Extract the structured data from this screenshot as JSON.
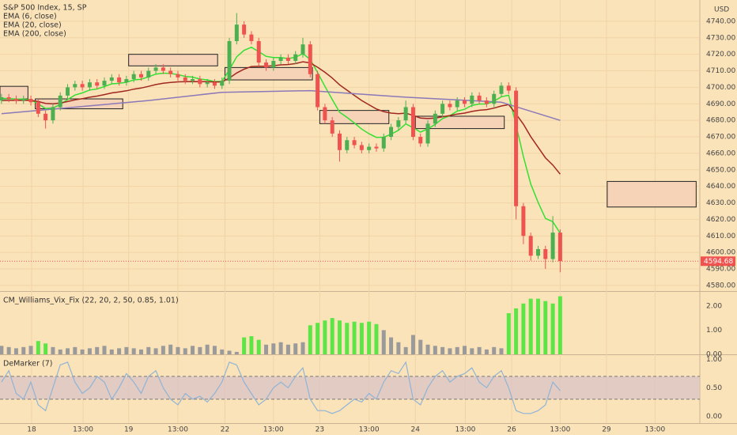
{
  "chart_data": [
    {
      "type": "candlestick",
      "title": "S&P 500 Index, 15, SP",
      "currency": "USD",
      "xlim": [
        -0.2,
        95
      ],
      "ylim": [
        4576.6,
        4752.9
      ],
      "grid": true,
      "yticks": [
        {
          "value": 4580,
          "label": "4580.00"
        },
        {
          "value": 4590,
          "label": "4590.00"
        },
        {
          "value": 4600,
          "label": "4600.00"
        },
        {
          "value": 4610,
          "label": "4610.00"
        },
        {
          "value": 4620,
          "label": "4620.00"
        },
        {
          "value": 4630,
          "label": "4630.00"
        },
        {
          "value": 4640,
          "label": "4640.00"
        },
        {
          "value": 4650,
          "label": "4650.00"
        },
        {
          "value": 4660,
          "label": "4660.00"
        },
        {
          "value": 4670,
          "label": "4670.00"
        },
        {
          "value": 4680,
          "label": "4680.00"
        },
        {
          "value": 4690,
          "label": "4690.00"
        },
        {
          "value": 4700,
          "label": "4700.00"
        },
        {
          "value": 4710,
          "label": "4710.00"
        },
        {
          "value": 4720,
          "label": "4720.00"
        },
        {
          "value": 4730,
          "label": "4730.00"
        },
        {
          "value": 4740,
          "label": "4740.00"
        }
      ],
      "up_color": "#4caf50",
      "down_color": "#ef5350",
      "open": [
        4692,
        4694,
        4693,
        4692,
        4693,
        4691,
        4684,
        4680,
        4688,
        4695,
        4700,
        4702,
        4700,
        4703,
        4701,
        4704,
        4706,
        4703,
        4705,
        4708,
        4706,
        4710,
        4712,
        4710,
        4708,
        4706,
        4704,
        4705,
        4702,
        4703,
        4701,
        4704,
        4728,
        4738,
        4732,
        4728,
        4715,
        4712,
        4716,
        4718,
        4716,
        4720,
        4726,
        4708,
        4688,
        4680,
        4672,
        4662,
        4668,
        4665,
        4662,
        4664,
        4663,
        4670,
        4676,
        4680,
        4688,
        4670,
        4666,
        4678,
        4684,
        4690,
        4688,
        4692,
        4690,
        4695,
        4692,
        4690,
        4696,
        4701,
        4698,
        4628,
        4610,
        4598,
        4602,
        4596,
        4612
      ],
      "high": [
        4696,
        4696,
        4695,
        4695,
        4695,
        4693,
        4686,
        4690,
        4697,
        4702,
        4704,
        4704,
        4705,
        4705,
        4706,
        4708,
        4708,
        4707,
        4710,
        4710,
        4712,
        4714,
        4714,
        4712,
        4710,
        4708,
        4707,
        4707,
        4705,
        4705,
        4706,
        4730,
        4745,
        4740,
        4734,
        4730,
        4717,
        4718,
        4720,
        4720,
        4722,
        4730,
        4728,
        4710,
        4690,
        4682,
        4674,
        4670,
        4670,
        4667,
        4666,
        4666,
        4672,
        4678,
        4682,
        4692,
        4690,
        4672,
        4680,
        4686,
        4692,
        4692,
        4694,
        4694,
        4697,
        4697,
        4694,
        4698,
        4703,
        4703,
        4700,
        4630,
        4612,
        4604,
        4604,
        4622,
        4614
      ],
      "low": [
        4690,
        4691,
        4690,
        4690,
        4689,
        4682,
        4675,
        4678,
        4686,
        4693,
        4698,
        4698,
        4698,
        4699,
        4699,
        4702,
        4701,
        4701,
        4703,
        4704,
        4704,
        4708,
        4708,
        4706,
        4704,
        4702,
        4702,
        4700,
        4700,
        4699,
        4699,
        4702,
        4726,
        4730,
        4726,
        4713,
        4710,
        4710,
        4714,
        4714,
        4714,
        4718,
        4706,
        4686,
        4678,
        4670,
        4655,
        4660,
        4663,
        4660,
        4660,
        4661,
        4661,
        4668,
        4674,
        4678,
        4668,
        4664,
        4664,
        4676,
        4682,
        4686,
        4686,
        4688,
        4688,
        4690,
        4688,
        4688,
        4694,
        4696,
        4620,
        4605,
        4595,
        4596,
        4590,
        4594,
        4588
      ],
      "close": [
        4694,
        4693,
        4692,
        4693,
        4691,
        4684,
        4680,
        4688,
        4695,
        4700,
        4702,
        4700,
        4703,
        4701,
        4704,
        4706,
        4703,
        4705,
        4708,
        4706,
        4710,
        4712,
        4710,
        4708,
        4706,
        4704,
        4705,
        4702,
        4703,
        4701,
        4704,
        4728,
        4738,
        4732,
        4728,
        4715,
        4712,
        4716,
        4718,
        4716,
        4720,
        4726,
        4708,
        4688,
        4680,
        4672,
        4662,
        4668,
        4665,
        4662,
        4664,
        4663,
        4670,
        4676,
        4680,
        4688,
        4670,
        4666,
        4678,
        4684,
        4690,
        4688,
        4692,
        4690,
        4695,
        4692,
        4690,
        4696,
        4701,
        4698,
        4628,
        4610,
        4598,
        4602,
        4596,
        4612,
        4594.68
      ],
      "last_price": 4594.68,
      "series": [
        {
          "name": "EMA (6, close)",
          "color": "#33e033",
          "values": [
            4693.3,
            4693.2,
            4692.9,
            4692.9,
            4692.4,
            4690.0,
            4687.1,
            4687.5,
            4689.6,
            4692.6,
            4695.3,
            4696.6,
            4698.4,
            4699.0,
            4700.5,
            4702.1,
            4702.4,
            4703.1,
            4704.5,
            4704.9,
            4706.4,
            4708.0,
            4708.6,
            4708.4,
            4707.7,
            4706.6,
            4706.2,
            4705.0,
            4704.5,
            4703.5,
            4703.6,
            4710.6,
            4718.5,
            4722.4,
            4724.3,
            4721.6,
            4718.8,
            4718.0,
            4718.0,
            4717.4,
            4718.2,
            4720.4,
            4716.9,
            4708.9,
            4700.6,
            4692.6,
            4684.9,
            4681.8,
            4678.4,
            4674.7,
            4671.9,
            4669.7,
            4669.8,
            4671.6,
            4674.0,
            4677.9,
            4675.6,
            4672.9,
            4674.8,
            4677.6,
            4681.1,
            4682.8,
            4685.6,
            4686.7,
            4689.1,
            4689.9,
            4689.9,
            4691.6,
            4694.3,
            4695.2,
            4677.2,
            4658.0,
            4641.4,
            4630.3,
            4620.6,
            4618.6,
            4611.6
          ]
        },
        {
          "name": "EMA (20, close)",
          "color": "#a0281e",
          "values": [
            4692.0,
            4692.1,
            4692.1,
            4692.2,
            4692.1,
            4691.4,
            4690.3,
            4690.0,
            4690.5,
            4691.4,
            4692.4,
            4693.1,
            4694.0,
            4694.7,
            4695.6,
            4696.6,
            4697.2,
            4697.9,
            4698.9,
            4699.6,
            4700.6,
            4701.7,
            4702.5,
            4703.0,
            4703.3,
            4703.4,
            4703.5,
            4703.4,
            4703.4,
            4703.2,
            4703.3,
            4705.6,
            4708.7,
            4711.0,
            4712.6,
            4712.8,
            4712.8,
            4713.1,
            4713.6,
            4713.8,
            4714.4,
            4715.5,
            4714.8,
            4712.2,
            4709.1,
            4705.6,
            4701.5,
            4698.3,
            4695.1,
            4692.0,
            4689.4,
            4686.9,
            4685.3,
            4684.4,
            4684.0,
            4684.4,
            4683.0,
            4681.4,
            4681.1,
            4681.4,
            4682.2,
            4682.9,
            4683.8,
            4684.4,
            4685.4,
            4686.1,
            4686.5,
            4687.4,
            4688.7,
            4689.5,
            4683.8,
            4677.7,
            4670.1,
            4663.7,
            4657.3,
            4652.9,
            4647.4
          ]
        },
        {
          "name": "EMA (200, close)",
          "color": "#8a78b8",
          "x": [
            0,
            10,
            20,
            30,
            42,
            55,
            68,
            76
          ],
          "values": [
            4684,
            4688,
            4692,
            4697,
            4698,
            4694,
            4691,
            4680
          ]
        }
      ],
      "zone_color": "#f6d2b6",
      "zones": [
        {
          "x": [
            -0.2,
            3.6
          ],
          "y": [
            4693,
            4700.6
          ]
        },
        {
          "x": [
            4.6,
            16.5
          ],
          "y": [
            4687,
            4693
          ]
        },
        {
          "x": [
            17.3,
            29.4
          ],
          "y": [
            4713,
            4720
          ]
        },
        {
          "x": [
            30.4,
            42.3
          ],
          "y": [
            4704.5,
            4712
          ]
        },
        {
          "x": [
            43.3,
            52.7
          ],
          "y": [
            4678,
            4686
          ]
        },
        {
          "x": [
            56.3,
            68.4
          ],
          "y": [
            4675,
            4682.5
          ]
        },
        {
          "x": [
            82.4,
            94.5
          ],
          "y": [
            4627.5,
            4643
          ]
        }
      ]
    },
    {
      "type": "bar",
      "title": "CM_Williams_Vix_Fix (22, 20, 2, 50, 0.85, 1.01)",
      "xlim": [
        -0.2,
        95
      ],
      "ylim": [
        0,
        2.55
      ],
      "yticks": [
        {
          "value": 0,
          "label": "0.00"
        },
        {
          "value": 1,
          "label": "1.00"
        },
        {
          "value": 2,
          "label": "2.00"
        }
      ],
      "values": [
        0.35,
        0.3,
        0.25,
        0.3,
        0.35,
        0.55,
        0.45,
        0.3,
        0.2,
        0.25,
        0.3,
        0.2,
        0.25,
        0.3,
        0.35,
        0.2,
        0.25,
        0.3,
        0.25,
        0.2,
        0.3,
        0.25,
        0.35,
        0.4,
        0.3,
        0.25,
        0.35,
        0.3,
        0.4,
        0.35,
        0.2,
        0.15,
        0.1,
        0.7,
        0.75,
        0.6,
        0.4,
        0.45,
        0.5,
        0.4,
        0.45,
        0.5,
        1.2,
        1.3,
        1.4,
        1.5,
        1.4,
        1.3,
        1.35,
        1.3,
        1.35,
        1.25,
        1.0,
        0.7,
        0.5,
        0.3,
        0.8,
        0.6,
        0.4,
        0.35,
        0.3,
        0.25,
        0.3,
        0.35,
        0.25,
        0.3,
        0.2,
        0.3,
        0.25,
        1.7,
        1.9,
        2.1,
        2.3,
        2.3,
        2.2,
        2.1,
        2.4
      ],
      "colors": [
        "#9a9a9a",
        "#9a9a9a",
        "#9a9a9a",
        "#9a9a9a",
        "#9a9a9a",
        "#5be646",
        "#5be646",
        "#9a9a9a",
        "#9a9a9a",
        "#9a9a9a",
        "#9a9a9a",
        "#9a9a9a",
        "#9a9a9a",
        "#9a9a9a",
        "#9a9a9a",
        "#9a9a9a",
        "#9a9a9a",
        "#9a9a9a",
        "#9a9a9a",
        "#9a9a9a",
        "#9a9a9a",
        "#9a9a9a",
        "#9a9a9a",
        "#9a9a9a",
        "#9a9a9a",
        "#9a9a9a",
        "#9a9a9a",
        "#9a9a9a",
        "#9a9a9a",
        "#9a9a9a",
        "#9a9a9a",
        "#9a9a9a",
        "#9a9a9a",
        "#5be646",
        "#5be646",
        "#5be646",
        "#9a9a9a",
        "#9a9a9a",
        "#9a9a9a",
        "#9a9a9a",
        "#9a9a9a",
        "#9a9a9a",
        "#5be646",
        "#5be646",
        "#5be646",
        "#5be646",
        "#5be646",
        "#5be646",
        "#5be646",
        "#5be646",
        "#5be646",
        "#5be646",
        "#9a9a9a",
        "#9a9a9a",
        "#9a9a9a",
        "#9a9a9a",
        "#9a9a9a",
        "#9a9a9a",
        "#9a9a9a",
        "#9a9a9a",
        "#9a9a9a",
        "#9a9a9a",
        "#9a9a9a",
        "#9a9a9a",
        "#9a9a9a",
        "#9a9a9a",
        "#9a9a9a",
        "#9a9a9a",
        "#9a9a9a",
        "#5be646",
        "#5be646",
        "#5be646",
        "#5be646",
        "#5be646",
        "#5be646",
        "#5be646",
        "#5be646"
      ]
    },
    {
      "type": "line",
      "title": "DeMarker (7)",
      "color": "#8fb4d6",
      "xlim": [
        -0.2,
        95
      ],
      "ylim": [
        -0.12,
        1.06
      ],
      "yticks": [
        {
          "value": 0,
          "label": "0.00"
        },
        {
          "value": 0.5,
          "label": "0.50"
        },
        {
          "value": 1,
          "label": "1.00"
        }
      ],
      "band": [
        0.3,
        0.7
      ],
      "band_color": "#dcc4c4",
      "values": [
        0.6,
        0.8,
        0.4,
        0.3,
        0.6,
        0.2,
        0.1,
        0.5,
        0.9,
        0.95,
        0.6,
        0.4,
        0.5,
        0.7,
        0.6,
        0.3,
        0.5,
        0.75,
        0.6,
        0.4,
        0.7,
        0.8,
        0.5,
        0.3,
        0.2,
        0.4,
        0.3,
        0.35,
        0.25,
        0.4,
        0.6,
        0.95,
        0.9,
        0.6,
        0.4,
        0.2,
        0.3,
        0.5,
        0.6,
        0.5,
        0.7,
        0.85,
        0.3,
        0.1,
        0.1,
        0.05,
        0.1,
        0.2,
        0.3,
        0.25,
        0.4,
        0.3,
        0.6,
        0.8,
        0.75,
        0.95,
        0.3,
        0.2,
        0.5,
        0.7,
        0.8,
        0.6,
        0.7,
        0.75,
        0.85,
        0.6,
        0.5,
        0.7,
        0.8,
        0.5,
        0.1,
        0.05,
        0.05,
        0.1,
        0.2,
        0.6,
        0.45
      ],
      "xticks": [
        {
          "value": 4.1,
          "label": "18"
        },
        {
          "value": 11.1,
          "label": "13:00"
        },
        {
          "value": 17.3,
          "label": "19"
        },
        {
          "value": 24.0,
          "label": "13:00"
        },
        {
          "value": 30.4,
          "label": "22"
        },
        {
          "value": 37.0,
          "label": "13:00"
        },
        {
          "value": 43.3,
          "label": "23"
        },
        {
          "value": 50.0,
          "label": "13:00"
        },
        {
          "value": 56.3,
          "label": "24"
        },
        {
          "value": 63.1,
          "label": "13:00"
        },
        {
          "value": 69.4,
          "label": "26"
        },
        {
          "value": 76.0,
          "label": "13:00"
        },
        {
          "value": 82.3,
          "label": "29"
        },
        {
          "value": 88.9,
          "label": "13:00"
        }
      ]
    }
  ]
}
